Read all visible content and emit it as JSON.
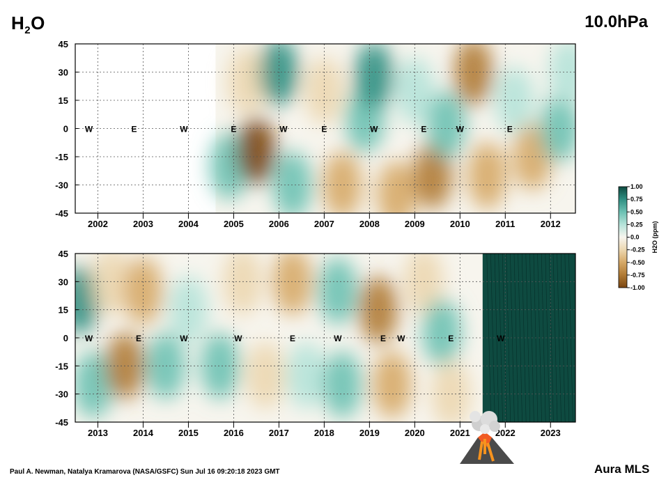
{
  "header": {
    "species_main": "H",
    "species_sub": "2",
    "species_tail": "O",
    "pressure_level": "10.0hPa"
  },
  "footer": {
    "credit": "Paul A. Newman, Natalya Kramarova (NASA/GSFC) Sun Jul 16 09:20:18 2023 GMT",
    "brand": "Aura MLS"
  },
  "icons": {
    "eruption": "volcano-eruption-icon"
  },
  "colors": {
    "deep_teal": "#0e4a40",
    "teal": "#2f8f82",
    "light_teal": "#a9ddd2",
    "neutral": "#f7f5ee",
    "light_tan": "#ecd7b0",
    "tan": "#cf9f5c",
    "brown": "#8a5417"
  },
  "chart_data": [
    {
      "type": "heatmap",
      "panel": "top",
      "ylabel": "",
      "xlabel": "",
      "ylim": [
        -45,
        45
      ],
      "yticks": [
        "45",
        "30",
        "15",
        "0",
        "-15",
        "-30",
        "-45"
      ],
      "xlim": [
        2001.5,
        2012.55
      ],
      "x_tick_labels": [
        "2002",
        "2003",
        "2004",
        "2005",
        "2006",
        "2007",
        "2008",
        "2009",
        "2010",
        "2011",
        "2012"
      ],
      "data_start": 2004.6,
      "grid": true,
      "qbo_labels": [
        {
          "t": 2001.8,
          "text": "W"
        },
        {
          "t": 2002.8,
          "text": "E"
        },
        {
          "t": 2003.9,
          "text": "W"
        },
        {
          "t": 2005.0,
          "text": "E"
        },
        {
          "t": 2006.1,
          "text": "W"
        },
        {
          "t": 2007.0,
          "text": "E"
        },
        {
          "t": 2008.1,
          "text": "W"
        },
        {
          "t": 2009.2,
          "text": "E"
        },
        {
          "t": 2010.0,
          "text": "W"
        },
        {
          "t": 2011.1,
          "text": "E"
        }
      ],
      "anomalies_ppm": [
        {
          "t": 2004.9,
          "lat": -20,
          "v": 0.5
        },
        {
          "t": 2005.3,
          "lat": 25,
          "v": -0.3
        },
        {
          "t": 2005.5,
          "lat": -12,
          "v": -0.9
        },
        {
          "t": 2006.0,
          "lat": 30,
          "v": 0.8
        },
        {
          "t": 2006.3,
          "lat": -30,
          "v": 0.4
        },
        {
          "t": 2007.0,
          "lat": 20,
          "v": -0.3
        },
        {
          "t": 2007.4,
          "lat": -30,
          "v": -0.6
        },
        {
          "t": 2007.9,
          "lat": 5,
          "v": 0.4
        },
        {
          "t": 2008.1,
          "lat": 28,
          "v": 0.85
        },
        {
          "t": 2008.6,
          "lat": -35,
          "v": -0.5
        },
        {
          "t": 2009.0,
          "lat": 20,
          "v": 0.3
        },
        {
          "t": 2009.4,
          "lat": -25,
          "v": -0.75
        },
        {
          "t": 2009.7,
          "lat": 2,
          "v": 0.4
        },
        {
          "t": 2010.3,
          "lat": 30,
          "v": -0.7
        },
        {
          "t": 2010.6,
          "lat": -25,
          "v": -0.5
        },
        {
          "t": 2011.2,
          "lat": 15,
          "v": 0.35
        },
        {
          "t": 2011.6,
          "lat": -15,
          "v": -0.6
        },
        {
          "t": 2012.2,
          "lat": 0,
          "v": 0.5
        },
        {
          "t": 2012.4,
          "lat": 30,
          "v": 0.3
        }
      ]
    },
    {
      "type": "heatmap",
      "panel": "bottom",
      "ylabel": "",
      "xlabel": "",
      "ylim": [
        -45,
        45
      ],
      "yticks": [
        "45",
        "30",
        "15",
        "0",
        "-15",
        "-30",
        "-45"
      ],
      "xlim": [
        2012.5,
        2023.55
      ],
      "x_tick_labels": [
        "2013",
        "2014",
        "2015",
        "2016",
        "2017",
        "2018",
        "2019",
        "2020",
        "2021",
        "2022",
        "2023"
      ],
      "data_end": 2023.55,
      "grid": true,
      "qbo_labels": [
        {
          "t": 2012.8,
          "text": "W"
        },
        {
          "t": 2013.9,
          "text": "E"
        },
        {
          "t": 2014.9,
          "text": "W"
        },
        {
          "t": 2016.1,
          "text": "W"
        },
        {
          "t": 2017.3,
          "text": "E"
        },
        {
          "t": 2018.3,
          "text": "W"
        },
        {
          "t": 2019.3,
          "text": "E"
        },
        {
          "t": 2019.7,
          "text": "W"
        },
        {
          "t": 2020.8,
          "text": "E"
        },
        {
          "t": 2021.9,
          "text": "W"
        }
      ],
      "anomalies_ppm": [
        {
          "t": 2012.6,
          "lat": 20,
          "v": 0.7
        },
        {
          "t": 2012.9,
          "lat": -25,
          "v": 0.6
        },
        {
          "t": 2013.3,
          "lat": 30,
          "v": -0.3
        },
        {
          "t": 2013.6,
          "lat": -15,
          "v": -0.7
        },
        {
          "t": 2014.0,
          "lat": 25,
          "v": -0.4
        },
        {
          "t": 2014.5,
          "lat": -15,
          "v": 0.5
        },
        {
          "t": 2015.0,
          "lat": 15,
          "v": 0.3
        },
        {
          "t": 2015.7,
          "lat": -15,
          "v": 0.55
        },
        {
          "t": 2016.2,
          "lat": 30,
          "v": -0.3
        },
        {
          "t": 2016.7,
          "lat": -20,
          "v": -0.3
        },
        {
          "t": 2017.3,
          "lat": 30,
          "v": -0.5
        },
        {
          "t": 2017.6,
          "lat": -20,
          "v": 0.35
        },
        {
          "t": 2018.3,
          "lat": 25,
          "v": 0.6
        },
        {
          "t": 2018.4,
          "lat": -25,
          "v": 0.4
        },
        {
          "t": 2019.2,
          "lat": 15,
          "v": -0.75
        },
        {
          "t": 2019.5,
          "lat": -25,
          "v": -0.4
        },
        {
          "t": 2020.2,
          "lat": 30,
          "v": -0.3
        },
        {
          "t": 2020.6,
          "lat": 3,
          "v": 0.4
        },
        {
          "t": 2020.8,
          "lat": -30,
          "v": -0.3
        }
      ],
      "hunga_tonga_anomaly_from": 2021.5,
      "hunga_tonga_value_ppm": 1.0
    }
  ],
  "colorbar": {
    "label": "H2O (ppm)",
    "range": [
      -1.0,
      1.0
    ],
    "tick_labels": [
      "1.00",
      "0.75",
      "0.50",
      "0.25",
      "0.0",
      "-0.25",
      "-0.50",
      "-0.75",
      "-1.00"
    ]
  }
}
